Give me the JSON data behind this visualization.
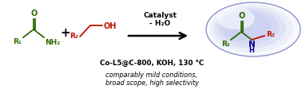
{
  "bg_color": "#ffffff",
  "amide_color": "#2d6a00",
  "alcohol_color": "#bb1100",
  "product_green": "#2d6a00",
  "product_blue": "#000088",
  "product_red": "#bb1100",
  "ellipse_face": "#c8cef0",
  "ellipse_edge": "#9090cc",
  "catalyst_text": "Catalyst\n- H₂O",
  "condition_text": "Co-L5@C-800, KOH, 130 °C",
  "mild_text": "comparably mild conditions,\nbroad scope, high selectivity",
  "figsize": [
    3.78,
    1.22
  ],
  "dpi": 100
}
